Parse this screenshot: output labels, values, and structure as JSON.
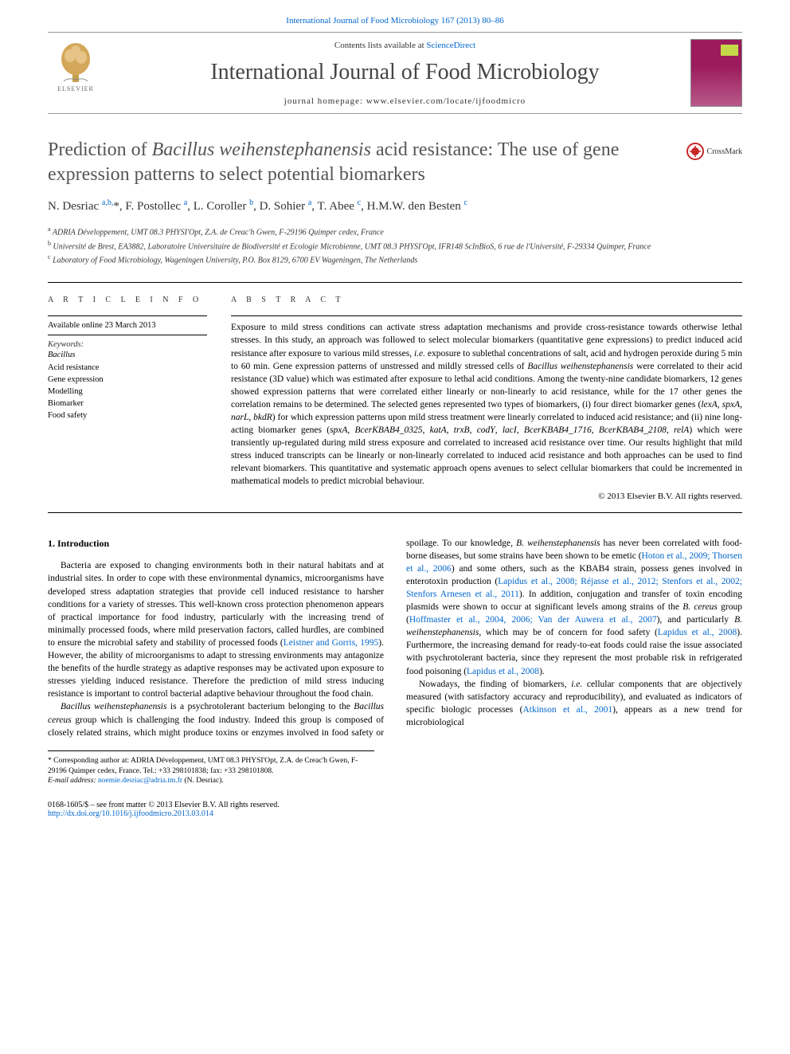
{
  "topLink": "International Journal of Food Microbiology 167 (2013) 80–86",
  "masthead": {
    "publisher": "ELSEVIER",
    "contentsPrefix": "Contents lists available at ",
    "contentsLink": "ScienceDirect",
    "journalTitle": "International Journal of Food Microbiology",
    "homepagePrefix": "journal homepage: ",
    "homepageUrl": "www.elsevier.com/locate/ijfoodmicro"
  },
  "crossmark": "CrossMark",
  "title": {
    "pre": "Prediction of ",
    "italic": "Bacillus weihenstephanensis",
    "post": " acid resistance: The use of gene expression patterns to select potential biomarkers"
  },
  "authorsHtml": "N. Desriac <sup>a,b,</sup>*, F. Postollec <sup>a</sup>, L. Coroller <sup>b</sup>, D. Sohier <sup>a</sup>, T. Abee <sup>c</sup>, H.M.W. den Besten <sup>c</sup>",
  "affiliations": [
    {
      "tag": "a",
      "text": "ADRIA Développement, UMT 08.3 PHYSI'Opt, Z.A. de Creac'h Gwen, F-29196 Quimper cedex, France"
    },
    {
      "tag": "b",
      "text": "Université de Brest, EA3882, Laboratoire Universitaire de Biodiversité et Ecologie Microbienne, UMT 08.3 PHYSI'Opt, IFR148 ScInBioS, 6 rue de l'Université, F-29334 Quimper, France"
    },
    {
      "tag": "c",
      "text": "Laboratory of Food Microbiology, Wageningen University, P.O. Box 8129, 6700 EV Wageningen, The Netherlands"
    }
  ],
  "infoHeading": "A R T I C L E   I N F O",
  "abstractHeading": "A B S T R A C T",
  "availableDate": "Available online 23 March 2013",
  "keywordsLabel": "Keywords:",
  "keywords": [
    "Bacillus",
    "Acid resistance",
    "Gene expression",
    "Modelling",
    "Biomarker",
    "Food safety"
  ],
  "abstract": "Exposure to mild stress conditions can activate stress adaptation mechanisms and provide cross-resistance towards otherwise lethal stresses. In this study, an approach was followed to select molecular biomarkers (quantitative gene expressions) to predict induced acid resistance after exposure to various mild stresses, i.e. exposure to sublethal concentrations of salt, acid and hydrogen peroxide during 5 min to 60 min. Gene expression patterns of unstressed and mildly stressed cells of Bacillus weihenstephanensis were correlated to their acid resistance (3D value) which was estimated after exposure to lethal acid conditions. Among the twenty-nine candidate biomarkers, 12 genes showed expression patterns that were correlated either linearly or non-linearly to acid resistance, while for the 17 other genes the correlation remains to be determined. The selected genes represented two types of biomarkers, (i) four direct biomarker genes (lexA, spxA, narL, bkdR) for which expression patterns upon mild stress treatment were linearly correlated to induced acid resistance; and (ii) nine long-acting biomarker genes (spxA, BcerKBAB4_0325, katA, trxB, codY, lacI, BcerKBAB4_1716, BcerKBAB4_2108, relA) which were transiently up-regulated during mild stress exposure and correlated to increased acid resistance over time. Our results highlight that mild stress induced transcripts can be linearly or non-linearly correlated to induced acid resistance and both approaches can be used to find relevant biomarkers. This quantitative and systematic approach opens avenues to select cellular biomarkers that could be incremented in mathematical models to predict microbial behaviour.",
  "copyright": "© 2013 Elsevier B.V. All rights reserved.",
  "introHeading": "1. Introduction",
  "body": {
    "p1": "Bacteria are exposed to changing environments both in their natural habitats and at industrial sites. In order to cope with these environmental dynamics, microorganisms have developed stress adaptation strategies that provide cell induced resistance to harsher conditions for a variety of stresses. This well-known cross protection phenomenon appears of practical importance for food industry, particularly with the increasing trend of minimally processed foods, where mild preservation factors, called hurdles, are combined to ensure the microbial safety and stability of processed foods (",
    "p1ref": "Leistner and Gorris, 1995",
    "p1b": "). However, the ability of microorganisms to adapt to stressing environments may antagonize the benefits of the hurdle strategy as adaptive responses may be activated upon exposure to stresses yielding induced resistance. Therefore the prediction of mild stress inducing resistance is important to control bacterial adaptive behaviour throughout the food chain.",
    "p2a": "Bacillus weihenstephanensis",
    "p2b": " is a psychrotolerant bacterium belonging to the ",
    "p2c": "Bacillus cereus",
    "p2d": " group which is challenging the food industry. Indeed this group is composed of closely related strains, which might produce toxins or enzymes involved in food safety or spoilage. To our knowledge, ",
    "p2e": "B. weihenstephanensis",
    "p2f": " has never been correlated with food-borne diseases, but some strains have been shown to be emetic (",
    "p2ref1": "Hoton et al., 2009; Thorsen et al., 2006",
    "p2g": ") and some others, such as the KBAB4 strain, possess genes involved in enterotoxin production (",
    "p2ref2": "Lapidus et al., 2008; Réjasse et al., 2012; Stenfors et al., 2002; Stenfors Arnesen et al., 2011",
    "p2h": "). In addition, conjugation and transfer of toxin encoding plasmids were shown to occur at significant levels among strains of the ",
    "p2i": "B. cereus",
    "p2j": " group (",
    "p2ref3": "Hoffmaster et al., 2004, 2006; Van der Auwera et al., 2007",
    "p2k": "), and particularly ",
    "p2l": "B. weihenstephanensis",
    "p2m": ", which may be of concern for food safety (",
    "p2ref4": "Lapidus et al., 2008",
    "p2n": "). Furthermore, the increasing demand for ready-to-eat foods could raise the issue associated with psychrotolerant bacteria, since they represent the most probable risk in refrigerated food poisoning (",
    "p2ref5": "Lapidus et al., 2008",
    "p2o": ").",
    "p3a": "Nowadays, the finding of biomarkers, ",
    "p3b": "i.e.",
    "p3c": " cellular components that are objectively measured (with satisfactory accuracy and reproducibility), and evaluated as indicators of specific biologic processes (",
    "p3ref": "Atkinson et al., 2001",
    "p3d": "), appears as a new trend for microbiological"
  },
  "footnote": {
    "corr": "* Corresponding author at: ADRIA Développement, UMT 08.3 PHYSI'Opt, Z.A. de Creac'h Gwen, F-29196 Quimper cedex, France. Tel.: +33 298101838; fax: +33 298101808.",
    "emailLabel": "E-mail address: ",
    "email": "noemie.desriac@adria.tm.fr",
    "emailSuffix": " (N. Desriac)."
  },
  "footer": {
    "left1": "0168-1605/$ – see front matter © 2013 Elsevier B.V. All rights reserved.",
    "doi": "http://dx.doi.org/10.1016/j.ijfoodmicro.2013.03.014"
  }
}
